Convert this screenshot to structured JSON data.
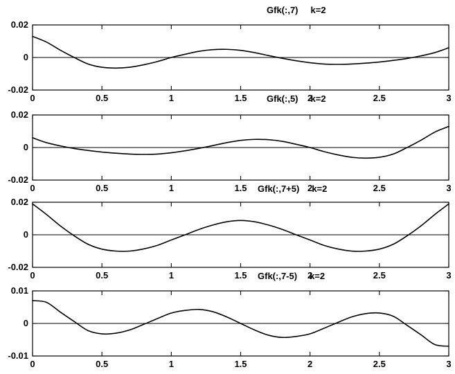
{
  "figure": {
    "background": "#ffffff",
    "axis_color": "#000000",
    "text_color": "#000000"
  },
  "chart_data": [
    {
      "type": "line",
      "title": "Gfk(:,7)",
      "subtitle": "k=2",
      "xlim": [
        0,
        3
      ],
      "ylim": [
        -0.02,
        0.02
      ],
      "x_ticks": [
        "0",
        "0.5",
        "1",
        "1.5",
        "2",
        "2.5",
        "3"
      ],
      "x_tick_values": [
        0,
        0.5,
        1,
        1.5,
        2,
        2.5,
        3
      ],
      "y_ticks": [
        "0.02",
        "0",
        "-0.02"
      ],
      "y_tick_values": [
        0.02,
        0,
        -0.02
      ],
      "zero_line": true,
      "grid": false,
      "x_step": 0.1,
      "line_color": "#000000",
      "values": [
        0.013,
        0.0095,
        0.0045,
        0,
        -0.004,
        -0.006,
        -0.0065,
        -0.006,
        -0.0045,
        -0.0025,
        0,
        0.002,
        0.0038,
        0.0048,
        0.005,
        0.0044,
        0.003,
        0.0012,
        -0.0005,
        -0.002,
        -0.0032,
        -0.004,
        -0.0042,
        -0.004,
        -0.0035,
        -0.0028,
        -0.0018,
        -0.0006,
        0.001,
        0.003,
        0.006
      ]
    },
    {
      "type": "line",
      "title": "Gfk(:,5)",
      "subtitle": "k=2",
      "xlim": [
        0,
        3
      ],
      "ylim": [
        -0.02,
        0.02
      ],
      "x_ticks": [
        "0",
        "0.5",
        "1",
        "1.5",
        "2",
        "2.5",
        "3"
      ],
      "x_tick_values": [
        0,
        0.5,
        1,
        1.5,
        2,
        2.5,
        3
      ],
      "y_ticks": [
        "0.02",
        "0",
        "-0.02"
      ],
      "y_tick_values": [
        0.02,
        0,
        -0.02
      ],
      "zero_line": true,
      "grid": false,
      "x_step": 0.1,
      "line_color": "#000000",
      "values": [
        0.006,
        0.003,
        0.001,
        -0.0006,
        -0.0018,
        -0.0028,
        -0.0035,
        -0.004,
        -0.0042,
        -0.004,
        -0.0032,
        -0.002,
        -0.0005,
        0.0012,
        0.003,
        0.0044,
        0.005,
        0.0048,
        0.0038,
        0.002,
        0,
        -0.0025,
        -0.0045,
        -0.006,
        -0.0065,
        -0.006,
        -0.004,
        0,
        0.0045,
        0.0095,
        0.013
      ]
    },
    {
      "type": "line",
      "title": "Gfk(:,7+5)",
      "subtitle": "k=2",
      "xlim": [
        0,
        3
      ],
      "ylim": [
        -0.02,
        0.02
      ],
      "x_ticks": [
        "0",
        "0.5",
        "1",
        "1.5",
        "2",
        "2.5",
        "3"
      ],
      "x_tick_values": [
        0,
        0.5,
        1,
        1.5,
        2,
        2.5,
        3
      ],
      "y_ticks": [
        "0.02",
        "0",
        "-0.02"
      ],
      "y_tick_values": [
        0.02,
        0,
        -0.02
      ],
      "zero_line": true,
      "grid": false,
      "x_step": 0.1,
      "line_color": "#000000",
      "values": [
        0.019,
        0.0125,
        0.0055,
        -0.0006,
        -0.0058,
        -0.0088,
        -0.01,
        -0.01,
        -0.0087,
        -0.0065,
        -0.0032,
        0,
        0.0033,
        0.006,
        0.008,
        0.0088,
        0.008,
        0.006,
        0.0033,
        0,
        -0.0032,
        -0.0065,
        -0.0087,
        -0.01,
        -0.01,
        -0.0088,
        -0.0058,
        -0.0006,
        0.0055,
        0.0125,
        0.019
      ]
    },
    {
      "type": "line",
      "title": "Gfk(:,7-5)",
      "subtitle": "k=2",
      "xlim": [
        0,
        3
      ],
      "ylim": [
        -0.01,
        0.01
      ],
      "x_ticks": [
        "0",
        "0.5",
        "1",
        "1.5",
        "2",
        "2.5",
        "3"
      ],
      "x_tick_values": [
        0,
        0.5,
        1,
        1.5,
        2,
        2.5,
        3
      ],
      "y_ticks": [
        "0.01",
        "0",
        "-0.01"
      ],
      "y_tick_values": [
        0.01,
        0,
        -0.01
      ],
      "zero_line": true,
      "grid": false,
      "x_step": 0.1,
      "line_color": "#000000",
      "values": [
        0.007,
        0.0065,
        0.0035,
        0.0006,
        -0.0022,
        -0.0032,
        -0.003,
        -0.002,
        -0.0003,
        0.0015,
        0.0032,
        0.004,
        0.0043,
        0.0036,
        0.002,
        0,
        -0.002,
        -0.0036,
        -0.0043,
        -0.004,
        -0.0032,
        -0.0015,
        0.0003,
        0.002,
        0.003,
        0.0032,
        0.0022,
        -0.0006,
        -0.0035,
        -0.0065,
        -0.007
      ]
    }
  ]
}
